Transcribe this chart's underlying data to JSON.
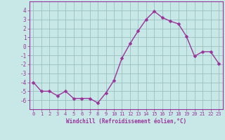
{
  "x": [
    0,
    1,
    2,
    3,
    4,
    5,
    6,
    7,
    8,
    9,
    10,
    11,
    12,
    13,
    14,
    15,
    16,
    17,
    18,
    19,
    20,
    21,
    22,
    23
  ],
  "y": [
    -4,
    -5,
    -5,
    -5.5,
    -5,
    -5.8,
    -5.8,
    -5.8,
    -6.3,
    -5.2,
    -3.8,
    -1.3,
    0.3,
    1.7,
    3.0,
    3.9,
    3.2,
    2.8,
    2.5,
    1.1,
    -1.1,
    -0.6,
    -0.6,
    -1.9
  ],
  "line_color": "#993399",
  "marker_color": "#993399",
  "bg_color": "#c8e8e8",
  "grid_color": "#9bbfbf",
  "xlabel": "Windchill (Refroidissement éolien,°C)",
  "xlabel_color": "#993399",
  "tick_color": "#993399",
  "ylim": [
    -7,
    5
  ],
  "xlim": [
    -0.5,
    23.5
  ],
  "yticks": [
    -6,
    -5,
    -4,
    -3,
    -2,
    -1,
    0,
    1,
    2,
    3,
    4
  ],
  "xticks": [
    0,
    1,
    2,
    3,
    4,
    5,
    6,
    7,
    8,
    9,
    10,
    11,
    12,
    13,
    14,
    15,
    16,
    17,
    18,
    19,
    20,
    21,
    22,
    23
  ],
  "xtick_labels": [
    "0",
    "1",
    "2",
    "3",
    "4",
    "5",
    "6",
    "7",
    "8",
    "9",
    "10",
    "11",
    "12",
    "13",
    "14",
    "15",
    "16",
    "17",
    "18",
    "19",
    "20",
    "21",
    "22",
    "23"
  ],
  "line_width": 1.0,
  "marker_size": 2.5
}
